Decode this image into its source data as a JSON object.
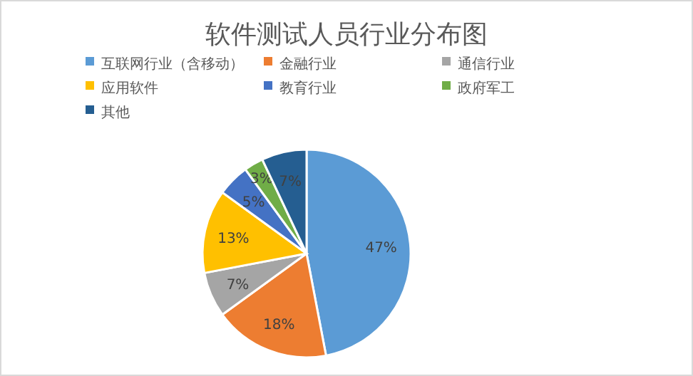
{
  "chart_data": {
    "type": "pie",
    "title": "软件测试人员行业分布图",
    "categories": [
      "互联网行业（含移动）",
      "金融行业",
      "通信行业",
      "应用软件",
      "教育行业",
      "政府军工",
      "其他"
    ],
    "values": [
      47,
      18,
      7,
      13,
      5,
      3,
      7
    ],
    "value_labels": [
      "47%",
      "18%",
      "7%",
      "13%",
      "5%",
      "3%",
      "7%"
    ],
    "colors": [
      "#5b9bd5",
      "#ed7d31",
      "#a5a5a5",
      "#ffc000",
      "#4472c4",
      "#70ad47",
      "#255e91"
    ],
    "legend": "top"
  }
}
